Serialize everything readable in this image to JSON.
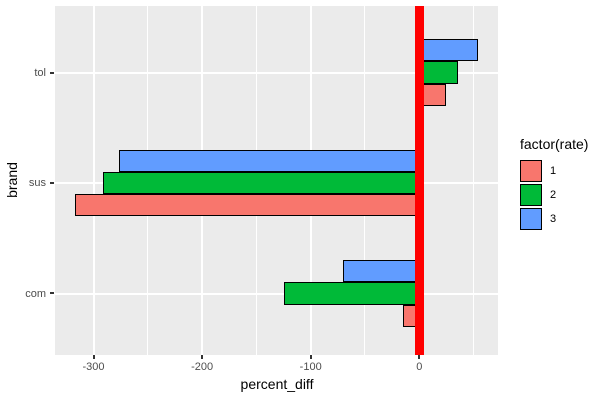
{
  "chart_data": {
    "type": "bar",
    "orientation": "horizontal",
    "title": "",
    "xlabel": "percent_diff",
    "ylabel": "brand",
    "categories": [
      "tol",
      "sus",
      "com"
    ],
    "series": [
      {
        "name": "1",
        "color": "#F8766D",
        "values": [
          25,
          -317,
          -15
        ]
      },
      {
        "name": "2",
        "color": "#00BA38",
        "values": [
          36,
          -291,
          -125
        ]
      },
      {
        "name": "3",
        "color": "#619CFF",
        "values": [
          54,
          -277,
          -70
        ]
      }
    ],
    "series_draw_order_top_to_bottom": [
      "3",
      "2",
      "1"
    ],
    "xlim": [
      -335.5,
      72.5
    ],
    "x_ticks": [
      -300,
      -200,
      -100,
      0
    ],
    "x_tick_labels": [
      "-300",
      "-200",
      "-100",
      "0"
    ],
    "x_minor_ticks": [
      -250,
      -150,
      -50,
      50
    ],
    "vline": {
      "x": 0,
      "color": "#FF0000"
    },
    "legend": {
      "title": "factor(rate)",
      "entries": [
        "1",
        "2",
        "3"
      ],
      "position": "right"
    },
    "style": {
      "panel_bg": "#EBEBEB",
      "grid_color": "#FFFFFF",
      "bar_outline": "#000000",
      "axis_text_color": "#4D4D4D",
      "tick_mark_color": "#333333"
    }
  }
}
